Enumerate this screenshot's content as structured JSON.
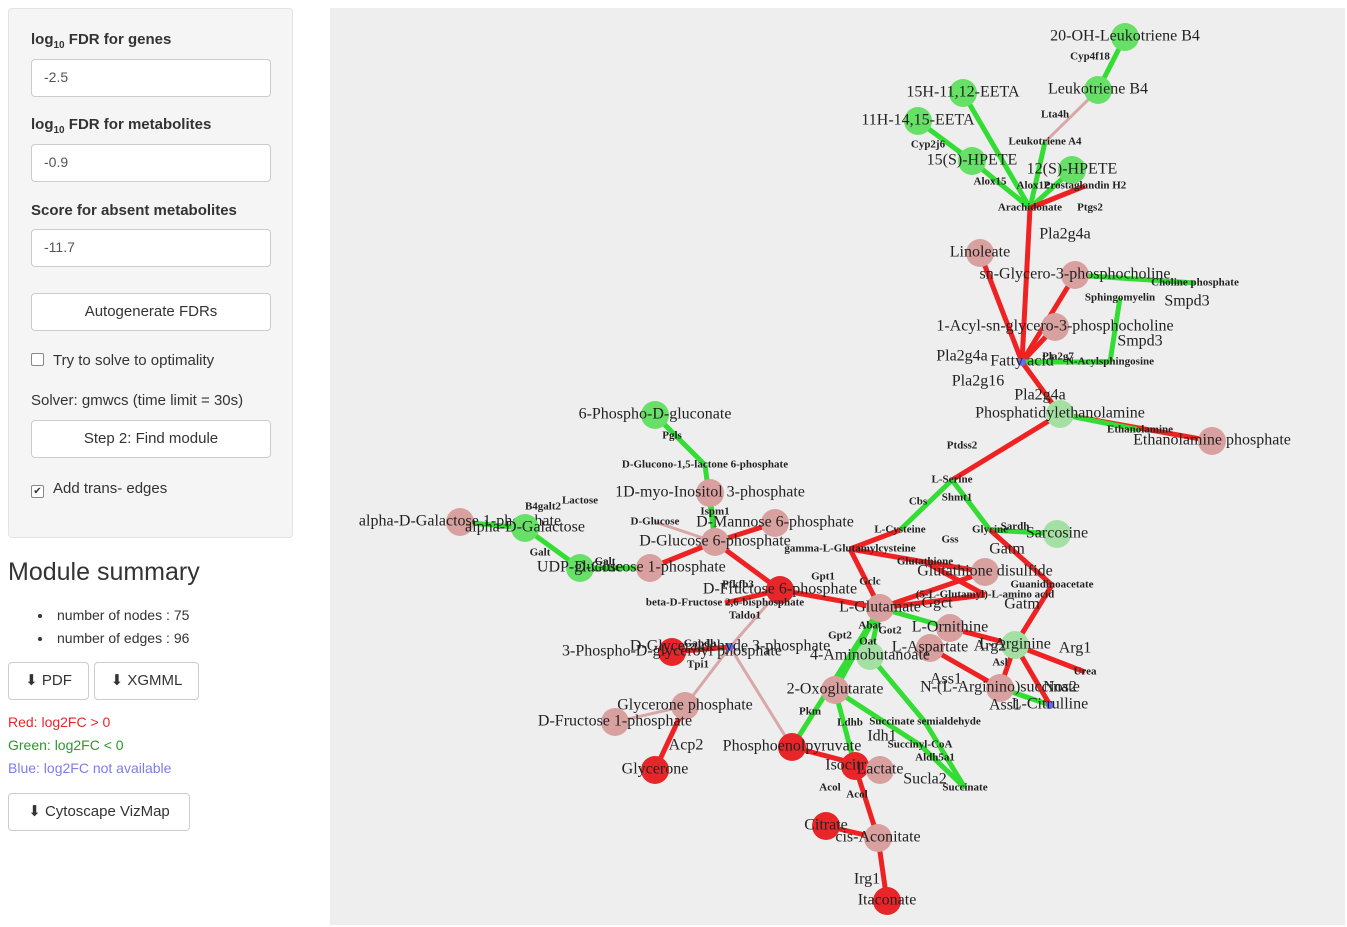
{
  "sidebar": {
    "fields": [
      {
        "prefix": "log",
        "sub": "10",
        "rest": " FDR for genes",
        "value": "-2.5"
      },
      {
        "prefix": "log",
        "sub": "10",
        "rest": " FDR for metabolites",
        "value": "-0.9"
      },
      {
        "prefix": "",
        "sub": "",
        "rest": "Score for absent metabolites",
        "value": "-11.7"
      }
    ],
    "autogenerate": "Autogenerate FDRs",
    "optimality": "Try to solve to optimality",
    "solver": "Solver: gmwcs (time limit = 30s)",
    "step2": "Step 2: Find module",
    "trans_edges": "Add trans- edges"
  },
  "summary": {
    "title": "Module summary",
    "stats": [
      {
        "label": "number of nodes :",
        "value": 75
      },
      {
        "label": "number of edges :",
        "value": 96
      }
    ],
    "pdf": "PDF",
    "xgmml": "XGMML",
    "legend": [
      "Red: log2FC > 0",
      "Green: log2FC < 0",
      "Blue: log2FC not available"
    ],
    "vizmap": "Cytoscape VizMap"
  },
  "network": {
    "nodes": [
      "20-OH-Leukotriene B4",
      "Leukotriene B4",
      "15H-11,12-EETA",
      "11H-14,15-EETA",
      "Leukotriene A4",
      "15(S)-HPETE",
      "12(S)-HPETE",
      "Prostaglandin H2",
      "Arachidonate",
      "Linoleate",
      "Choline phosphate",
      "sn-Glycero-3-phosphocholine",
      "Sphingomyelin",
      "1-Acyl-sn-glycero-3-phosphocholine",
      "N-Acylsphingosine",
      "Fatty acid",
      "Phosphatidylethanolamine",
      "Ethanolamine phosphate",
      "Ethanolamine",
      "L-Serine",
      "Glycine",
      "Sarcosine",
      "L-Cysteine",
      "gamma-L-Glutamylcysteine",
      "Glutathione",
      "Glutathione disulfide",
      "Guanidinoacetate",
      "(5-L-Glutamyl)-L-amino acid",
      "L-Glutamate",
      "L-Ornithine",
      "L-Arginine",
      "L-Aspartate",
      "4-Aminobutanoate",
      "N-(L-Arginino)succinate",
      "L-Citrulline",
      "Urea",
      "2-Oxoglutarate",
      "Succinate semialdehyde",
      "Succinyl-CoA",
      "Succinate",
      "Isocitrate",
      "Lactate",
      "Phosphoenolpyruvate",
      "Citrate",
      "cis-Aconitate",
      "Itaconate",
      "6-Phospho-D-gluconate",
      "D-Glucono-1,5-lactone 6-phosphate",
      "1D-myo-Inositol 3-phosphate",
      "alpha-D-Galactose 1-phosphate",
      "alpha-D-Galactose",
      "D-Glucose",
      "D-Mannose 6-phosphate",
      "D-Glucose 6-phosphate",
      "UDP-glucose",
      "D-Glucose 1-phosphate",
      "D-Fructose 6-phosphate",
      "beta-D-Fructose 2,6-bisphosphate",
      "3-Phospho-D-glyceroyl phosphate",
      "D-Glyceraldehyde 3-phosphate",
      "Glycerone phosphate",
      "D-Fructose 1-phosphate",
      "Glycerone"
    ],
    "genes": [
      "Cyp4f18",
      "Lta4h",
      "Cyp2j6",
      "Alox15",
      "Alox12",
      "Ptgs2",
      "Pla2g4a",
      "Pla2g16",
      "Pla2g4a",
      "Smpd3",
      "Smpd3",
      "Pla2g7",
      "Pla2g4a",
      "Ptdss2",
      "Shmt1",
      "Cbs",
      "Sardh",
      "Gatm",
      "Gatm",
      "Gss",
      "Ggct",
      "Arg1",
      "Arg2",
      "Asl",
      "Ass1",
      "Ass1",
      "Nos2",
      "Abat",
      "Oat",
      "Got2",
      "Gpt2",
      "Pkm",
      "Ldhb",
      "Idh1",
      "Aldh5a1",
      "Sucla2",
      "Acol",
      "Acol",
      "Irg1",
      "Acp2",
      "Tpi1",
      "Gapdh",
      "Galt",
      "Galt",
      "B4galt2",
      "Lactose",
      "Pgls",
      "Ispm1",
      "Pfkfb3",
      "Taldo1",
      "Gpt1",
      "Gclc"
    ]
  }
}
